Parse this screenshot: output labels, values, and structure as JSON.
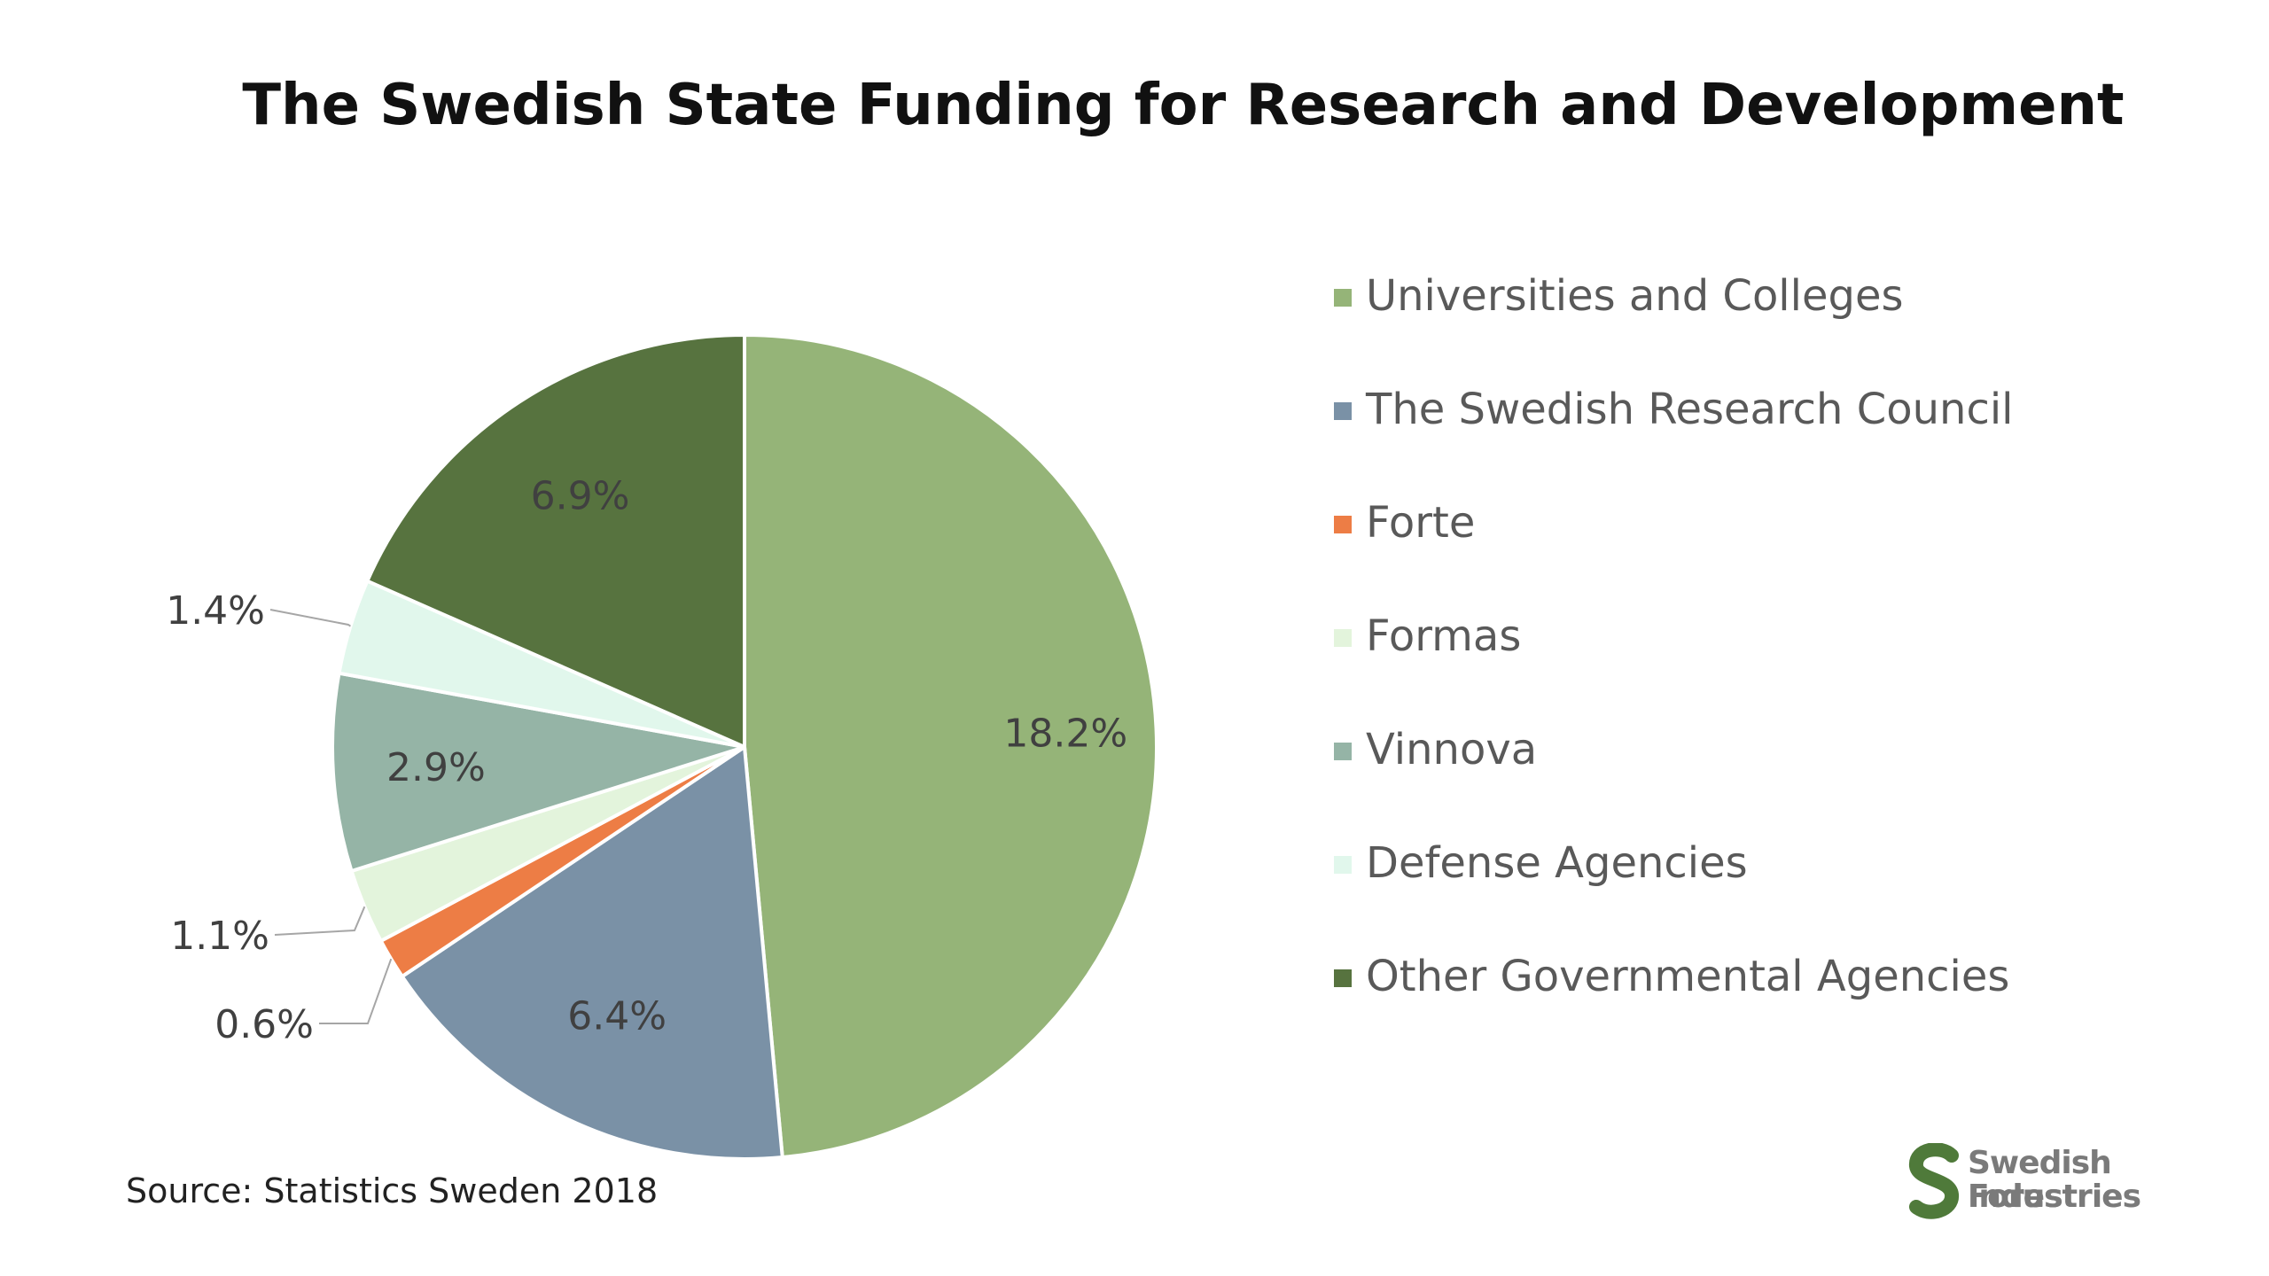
{
  "title": "The Swedish State Funding for Research and Development",
  "source": "Source: Statistics Sweden 2018",
  "logo": {
    "line1": "Swedish Forest",
    "line2": "Industries",
    "color": "#4f7a3a"
  },
  "chart_data": {
    "type": "pie",
    "title": "The Swedish State Funding for Research and Development",
    "legend_position": "right",
    "slices": [
      {
        "name": "Universities and Colleges",
        "value": 18.2,
        "label": "18.2%",
        "color": "#95b478"
      },
      {
        "name": "The Swedish Research Council",
        "value": 6.4,
        "label": "6.4%",
        "color": "#7a91a6"
      },
      {
        "name": "Forte",
        "value": 0.6,
        "label": "0.6%",
        "color": "#ed7d45"
      },
      {
        "name": "Formas",
        "value": 1.1,
        "label": "1.1%",
        "color": "#e3f4dc"
      },
      {
        "name": "Vinnova",
        "value": 2.9,
        "label": "2.9%",
        "color": "#95b4a6"
      },
      {
        "name": "Defense Agencies",
        "value": 1.4,
        "label": "1.4%",
        "color": "#e1f7ec"
      },
      {
        "name": "Other Governmental Agencies",
        "value": 6.9,
        "label": "6.9%",
        "color": "#57733f"
      }
    ]
  }
}
